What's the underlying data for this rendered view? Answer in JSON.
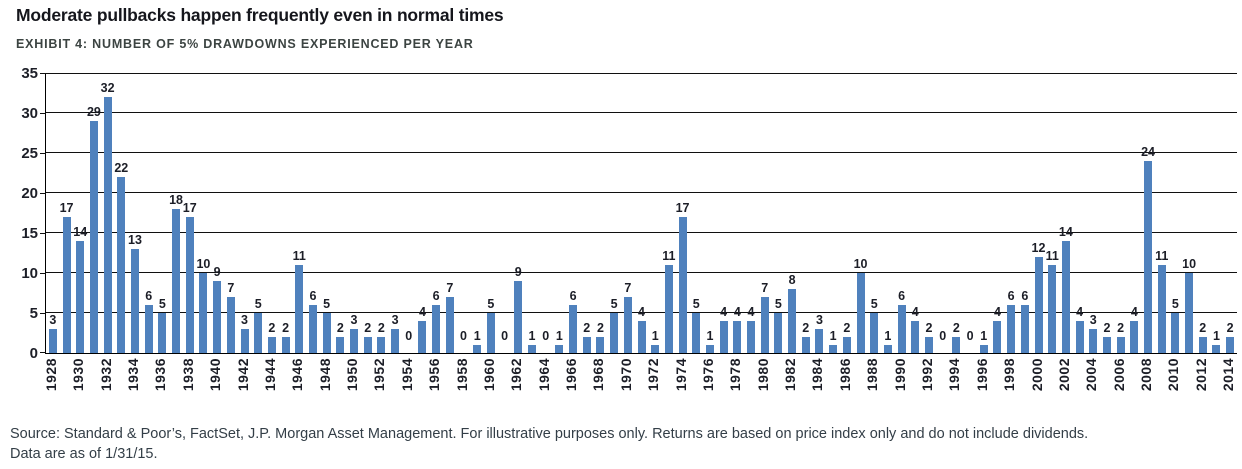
{
  "header": {
    "title": "Moderate pullbacks happen frequently even in normal times",
    "subtitle": "EXHIBIT 4: NUMBER OF 5% DRAWDOWNS EXPERIENCED PER YEAR"
  },
  "chart_data": {
    "type": "bar",
    "title": "Number of 5% drawdowns experienced per year",
    "categories": [
      "1928",
      "1929",
      "1930",
      "1931",
      "1932",
      "1933",
      "1934",
      "1935",
      "1936",
      "1937",
      "1938",
      "1939",
      "1940",
      "1941",
      "1942",
      "1943",
      "1944",
      "1945",
      "1946",
      "1947",
      "1948",
      "1949",
      "1950",
      "1951",
      "1952",
      "1953",
      "1954",
      "1955",
      "1956",
      "1957",
      "1958",
      "1959",
      "1960",
      "1961",
      "1962",
      "1963",
      "1964",
      "1965",
      "1966",
      "1967",
      "1968",
      "1969",
      "1970",
      "1971",
      "1972",
      "1973",
      "1974",
      "1975",
      "1976",
      "1977",
      "1978",
      "1979",
      "1980",
      "1981",
      "1982",
      "1983",
      "1984",
      "1985",
      "1986",
      "1987",
      "1988",
      "1989",
      "1990",
      "1991",
      "1992",
      "1993",
      "1994",
      "1995",
      "1996",
      "1997",
      "1998",
      "1999",
      "2000",
      "2001",
      "2002",
      "2003",
      "2004",
      "2005",
      "2006",
      "2007",
      "2008",
      "2009",
      "2010",
      "2011",
      "2012",
      "2013",
      "2014"
    ],
    "values": [
      3,
      17,
      14,
      29,
      32,
      22,
      13,
      6,
      5,
      18,
      17,
      10,
      9,
      7,
      3,
      5,
      2,
      2,
      11,
      6,
      5,
      2,
      3,
      2,
      2,
      3,
      0,
      4,
      6,
      7,
      0,
      1,
      5,
      0,
      9,
      1,
      0,
      1,
      6,
      2,
      2,
      5,
      7,
      4,
      1,
      11,
      17,
      5,
      1,
      4,
      4,
      4,
      7,
      5,
      8,
      2,
      3,
      1,
      2,
      10,
      5,
      1,
      6,
      4,
      2,
      0,
      2,
      0,
      1,
      4,
      6,
      6,
      12,
      11,
      14,
      4,
      3,
      2,
      2,
      4,
      24,
      11,
      5,
      10,
      2,
      1,
      2
    ],
    "ylim": [
      0,
      35
    ],
    "yticks": [
      0,
      5,
      10,
      15,
      20,
      25,
      30,
      35
    ],
    "xtick_every": 2,
    "grid": "horizontal",
    "legend": "none",
    "data_labels": true,
    "xlabel": "",
    "ylabel": ""
  },
  "footer": {
    "line1": "Source: Standard & Poor’s, FactSet, J.P. Morgan Asset Management. For illustrative purposes only. Returns are based on price index only and do not include dividends.",
    "line2": "Data are as of 1/31/15."
  },
  "colors": {
    "bar": "#4f81bd",
    "grid": "#101010",
    "axis_text": "#1c1e27",
    "title_text": "#15161c",
    "subtitle_text": "#3c4442",
    "footer_text": "#333e47"
  }
}
